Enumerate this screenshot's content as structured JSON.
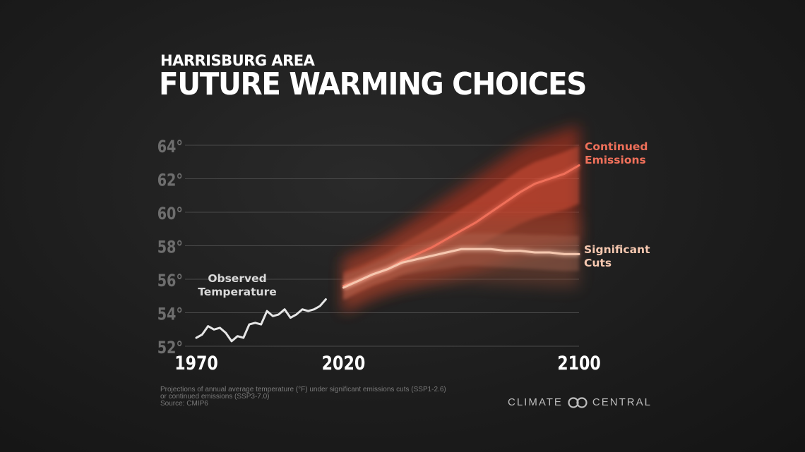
{
  "header": {
    "subtitle": "HARRISBURG AREA",
    "title": "FUTURE WARMING CHOICES"
  },
  "chart_data": {
    "type": "line",
    "title": "FUTURE WARMING CHOICES",
    "subtitle": "HARRISBURG AREA",
    "xlim": [
      1970,
      2100
    ],
    "ylim": [
      52,
      64
    ],
    "x_ticks": [
      1970,
      2020,
      2100
    ],
    "y_ticks": [
      52,
      54,
      56,
      58,
      60,
      62,
      64
    ],
    "y_tick_labels": [
      "52°",
      "54°",
      "56°",
      "58°",
      "60°",
      "62°",
      "64°"
    ],
    "grid": true,
    "series": [
      {
        "name": "Observed Temperature",
        "label": [
          "Observed",
          "Temperature"
        ],
        "color": "#e6e6e6",
        "x": [
          1970,
          1972,
          1974,
          1976,
          1978,
          1980,
          1982,
          1984,
          1986,
          1988,
          1990,
          1992,
          1994,
          1996,
          1998,
          2000,
          2002,
          2004,
          2006,
          2008,
          2010,
          2012,
          2014,
          2016,
          2018,
          2020
        ],
        "y": [
          52.5,
          52.7,
          53.2,
          53.0,
          53.1,
          52.8,
          52.3,
          52.6,
          52.5,
          53.3,
          53.4,
          53.3,
          54.1,
          53.8,
          53.9,
          54.2,
          53.7,
          53.9,
          54.2,
          54.1,
          54.2,
          54.4,
          54.8,
          null,
          null,
          null
        ]
      },
      {
        "name": "Continued Emissions",
        "label": [
          "Continued",
          "Emissions"
        ],
        "color": "#f0705a",
        "x": [
          2020,
          2025,
          2030,
          2035,
          2040,
          2045,
          2050,
          2055,
          2060,
          2065,
          2070,
          2075,
          2080,
          2085,
          2090,
          2095,
          2100
        ],
        "y": [
          55.6,
          55.9,
          56.3,
          56.6,
          57.1,
          57.5,
          57.9,
          58.4,
          58.9,
          59.4,
          60.0,
          60.6,
          61.2,
          61.7,
          62.0,
          62.3,
          62.8
        ],
        "range_low": [
          54.0,
          54.5,
          54.9,
          55.2,
          55.5,
          55.7,
          55.9,
          56.1,
          56.3,
          56.5,
          56.8,
          57.1,
          57.4,
          57.6,
          57.8,
          58.0,
          58.2
        ],
        "range_high": [
          57.3,
          57.6,
          58.0,
          58.5,
          59.1,
          59.7,
          60.3,
          60.9,
          61.5,
          62.1,
          62.7,
          63.3,
          63.9,
          64.3,
          64.6,
          64.9,
          65.2
        ]
      },
      {
        "name": "Significant Cuts",
        "label": [
          "Significant",
          "Cuts"
        ],
        "color": "#f6c8b0",
        "x": [
          2020,
          2025,
          2030,
          2035,
          2040,
          2045,
          2050,
          2055,
          2060,
          2065,
          2070,
          2075,
          2080,
          2085,
          2090,
          2095,
          2100
        ],
        "y": [
          55.5,
          55.9,
          56.3,
          56.6,
          57.0,
          57.2,
          57.4,
          57.6,
          57.8,
          57.8,
          57.8,
          57.7,
          57.7,
          57.6,
          57.6,
          57.5,
          57.5
        ],
        "range_low": [
          54.0,
          54.6,
          55.0,
          55.3,
          55.5,
          55.6,
          55.7,
          55.7,
          55.8,
          55.8,
          55.7,
          55.7,
          55.6,
          55.6,
          55.5,
          55.5,
          55.5
        ],
        "range_high": [
          57.0,
          57.2,
          57.6,
          58.0,
          58.5,
          58.9,
          59.2,
          59.4,
          59.6,
          59.7,
          59.7,
          59.7,
          59.7,
          59.7,
          59.7,
          59.7,
          59.7
        ]
      }
    ]
  },
  "footnote": {
    "line1": "Projections of annual average temperature (°F) under significant emissions cuts (SSP1-2.6)",
    "line2": "or continued emissions (SSP3-7.0)",
    "line3": "Source: CMIP6"
  },
  "brand": {
    "left": "CLIMATE",
    "right": "CENTRAL",
    "logo_icon": "climate-central-logo-icon"
  },
  "colors": {
    "background": "#1c1c1c",
    "observed": "#e6e6e6",
    "continued": "#f0705a",
    "cuts": "#f6c8b0",
    "tick_label": "#6e6e6e",
    "grid": "#4a4a4a"
  }
}
